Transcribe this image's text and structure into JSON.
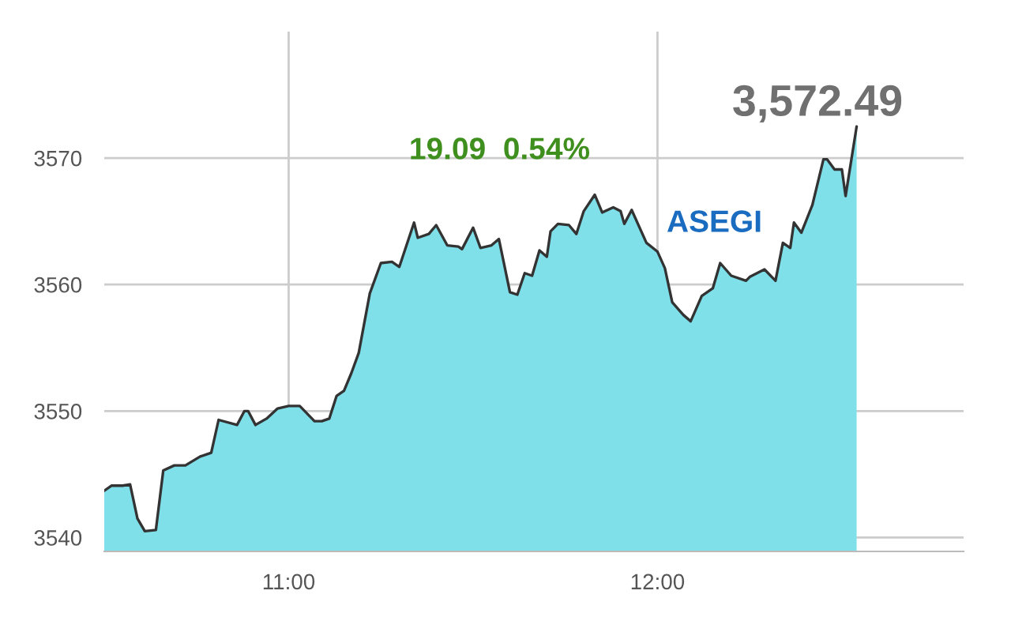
{
  "chart_data": {
    "type": "area",
    "annotations": [
      "3,572.49",
      "19.09  0.54%",
      "ASEGI"
    ],
    "x": [
      10.5,
      10.52,
      10.55,
      10.57,
      10.59,
      10.61,
      10.64,
      10.66,
      10.69,
      10.72,
      10.76,
      10.79,
      10.81,
      10.86,
      10.88,
      10.89,
      10.91,
      10.94,
      10.97,
      11.0,
      11.03,
      11.07,
      11.09,
      11.11,
      11.13,
      11.15,
      11.17,
      11.19,
      11.22,
      11.25,
      11.28,
      11.3,
      11.34,
      11.35,
      11.38,
      11.4,
      11.43,
      11.46,
      11.47,
      11.5,
      11.52,
      11.55,
      11.57,
      11.6,
      11.62,
      11.64,
      11.66,
      11.68,
      11.7,
      11.71,
      11.73,
      11.76,
      11.78,
      11.8,
      11.83,
      11.85,
      11.88,
      11.9,
      11.91,
      11.93,
      11.97,
      12.0,
      12.02,
      12.04,
      12.07,
      12.09,
      12.12,
      12.15,
      12.17,
      12.2,
      12.24,
      12.25,
      12.29,
      12.32,
      12.34,
      12.36,
      12.37,
      12.39,
      12.42,
      12.45,
      12.46,
      12.48,
      12.5,
      12.51,
      12.54
    ],
    "series": [
      {
        "color": "#80e0ea",
        "values": [
          3543.7,
          3544.1,
          3544.1,
          3544.2,
          3541.5,
          3540.5,
          3540.6,
          3545.3,
          3545.7,
          3545.7,
          3546.4,
          3546.7,
          3549.3,
          3548.9,
          3550.0,
          3550.0,
          3548.9,
          3549.4,
          3550.2,
          3550.4,
          3550.4,
          3549.2,
          3549.2,
          3549.4,
          3551.2,
          3551.6,
          3553.0,
          3554.6,
          3559.3,
          3561.7,
          3561.8,
          3561.4,
          3564.9,
          3563.7,
          3564.0,
          3564.7,
          3563.1,
          3563.0,
          3562.8,
          3564.5,
          3562.9,
          3563.1,
          3563.6,
          3559.4,
          3559.2,
          3560.9,
          3560.7,
          3562.7,
          3562.2,
          3564.2,
          3564.8,
          3564.7,
          3564.0,
          3565.8,
          3567.1,
          3565.7,
          3566.1,
          3565.8,
          3564.8,
          3565.9,
          3563.3,
          3562.6,
          3561.3,
          3558.6,
          3557.6,
          3557.1,
          3559.1,
          3559.7,
          3561.7,
          3560.7,
          3560.3,
          3560.6,
          3561.2,
          3560.3,
          3563.3,
          3562.9,
          3564.9,
          3564.1,
          3566.3,
          3569.9,
          3569.9,
          3569.1,
          3569.1,
          3567.0,
          3572.5
        ]
      }
    ],
    "xlim": [
      10.5,
      12.83
    ],
    "xticks": [
      {
        "value": 11,
        "label": "11:00"
      },
      {
        "value": 12,
        "label": "12:00"
      }
    ],
    "ylim": [
      3538.9,
      3580
    ],
    "yticks": [
      3540,
      3550,
      3560,
      3570
    ],
    "grid": true,
    "legend": false
  }
}
